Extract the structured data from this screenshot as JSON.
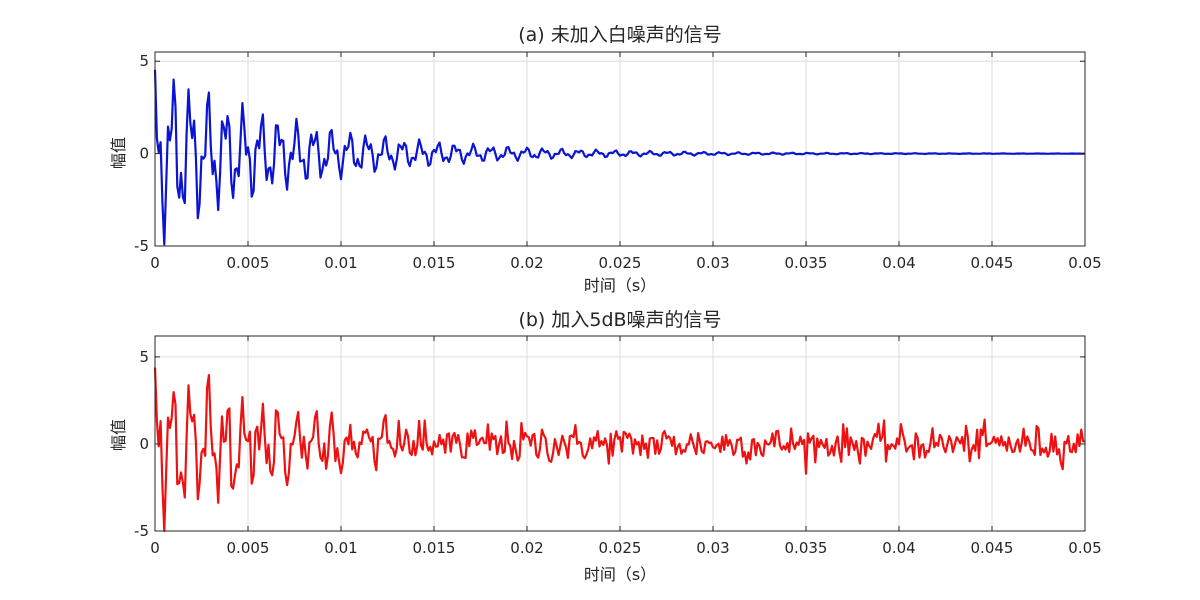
{
  "chart_data": [
    {
      "type": "line",
      "title": "(a) 未加入白噪声的信号",
      "xlabel": "时间（s）",
      "ylabel": "幅值",
      "xlim": [
        0,
        0.05
      ],
      "ylim": [
        -5,
        5.5
      ],
      "xticks": [
        0,
        0.005,
        0.01,
        0.015,
        0.02,
        0.025,
        0.03,
        0.035,
        0.04,
        0.045,
        0.05
      ],
      "xtick_labels": [
        "0",
        "0.005",
        "0.01",
        "0.015",
        "0.02",
        "0.025",
        "0.03",
        "0.035",
        "0.04",
        "0.045",
        "0.05"
      ],
      "yticks": [
        -5,
        0,
        5
      ],
      "ytick_labels": [
        "-5",
        "0",
        "5"
      ],
      "grid": true,
      "series": [
        {
          "color": "#0a14d2",
          "signal": "decaying-oscillation",
          "peak_amplitude": 5.3,
          "decay_time_constant": 0.0075,
          "oscillation_period": 0.00095,
          "noise_level": 0
        }
      ]
    },
    {
      "type": "line",
      "title": "(b) 加入5dB噪声的信号",
      "xlabel": "时间（s）",
      "ylabel": "幅值",
      "xlim": [
        0,
        0.05
      ],
      "ylim": [
        -5,
        6.2
      ],
      "xticks": [
        0,
        0.005,
        0.01,
        0.015,
        0.02,
        0.025,
        0.03,
        0.035,
        0.04,
        0.045,
        0.05
      ],
      "xtick_labels": [
        "0",
        "0.005",
        "0.01",
        "0.015",
        "0.02",
        "0.025",
        "0.03",
        "0.035",
        "0.04",
        "0.045",
        "0.05"
      ],
      "yticks": [
        -5,
        0,
        5
      ],
      "ytick_labels": [
        "-5",
        "0",
        "5"
      ],
      "grid": true,
      "series": [
        {
          "color": "#ee1111",
          "signal": "decaying-oscillation-with-noise",
          "peak_amplitude": 5.3,
          "decay_time_constant": 0.0075,
          "oscillation_period": 0.00095,
          "noise_level": 0.5
        }
      ]
    }
  ]
}
